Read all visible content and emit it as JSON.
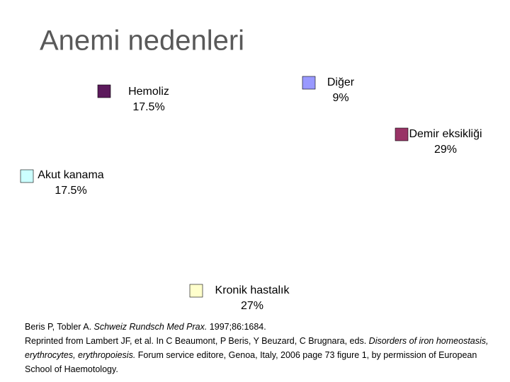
{
  "chart_data": {
    "type": "pie",
    "title": "Anemi nedenleri",
    "categories": [
      "Diğer",
      "Demir eksikliği",
      "Kronik hastalık",
      "Akut kanama",
      "Hemoliz"
    ],
    "values": [
      9,
      29,
      27,
      17.5,
      17.5
    ],
    "value_labels": [
      "9%",
      "29%",
      "27%",
      "17.5%",
      "17.5%"
    ],
    "colors": [
      "#9999ff",
      "#993366",
      "#ffffcc",
      "#ccffff",
      "#5c1a5c"
    ]
  },
  "source": [
    [
      {
        "text": "Beris P, Tobler A. ",
        "italic": false
      },
      {
        "text": "Schweiz Rundsch Med Prax.",
        "italic": true
      },
      {
        "text": " 1997;86:1684.",
        "italic": false
      }
    ],
    [
      {
        "text": "Reprinted from Lambert JF, et al. In C Beaumont, P Beris, Y Beuzard, C Brugnara, eds. ",
        "italic": false
      },
      {
        "text": "Disorders of iron homeostasis, erythrocytes, erythropoiesis.",
        "italic": true
      },
      {
        "text": " Forum service editore, Genoa, Italy, 2006 page 73 figure 1, by permission of European School of Haemotology.",
        "italic": false
      }
    ]
  ]
}
